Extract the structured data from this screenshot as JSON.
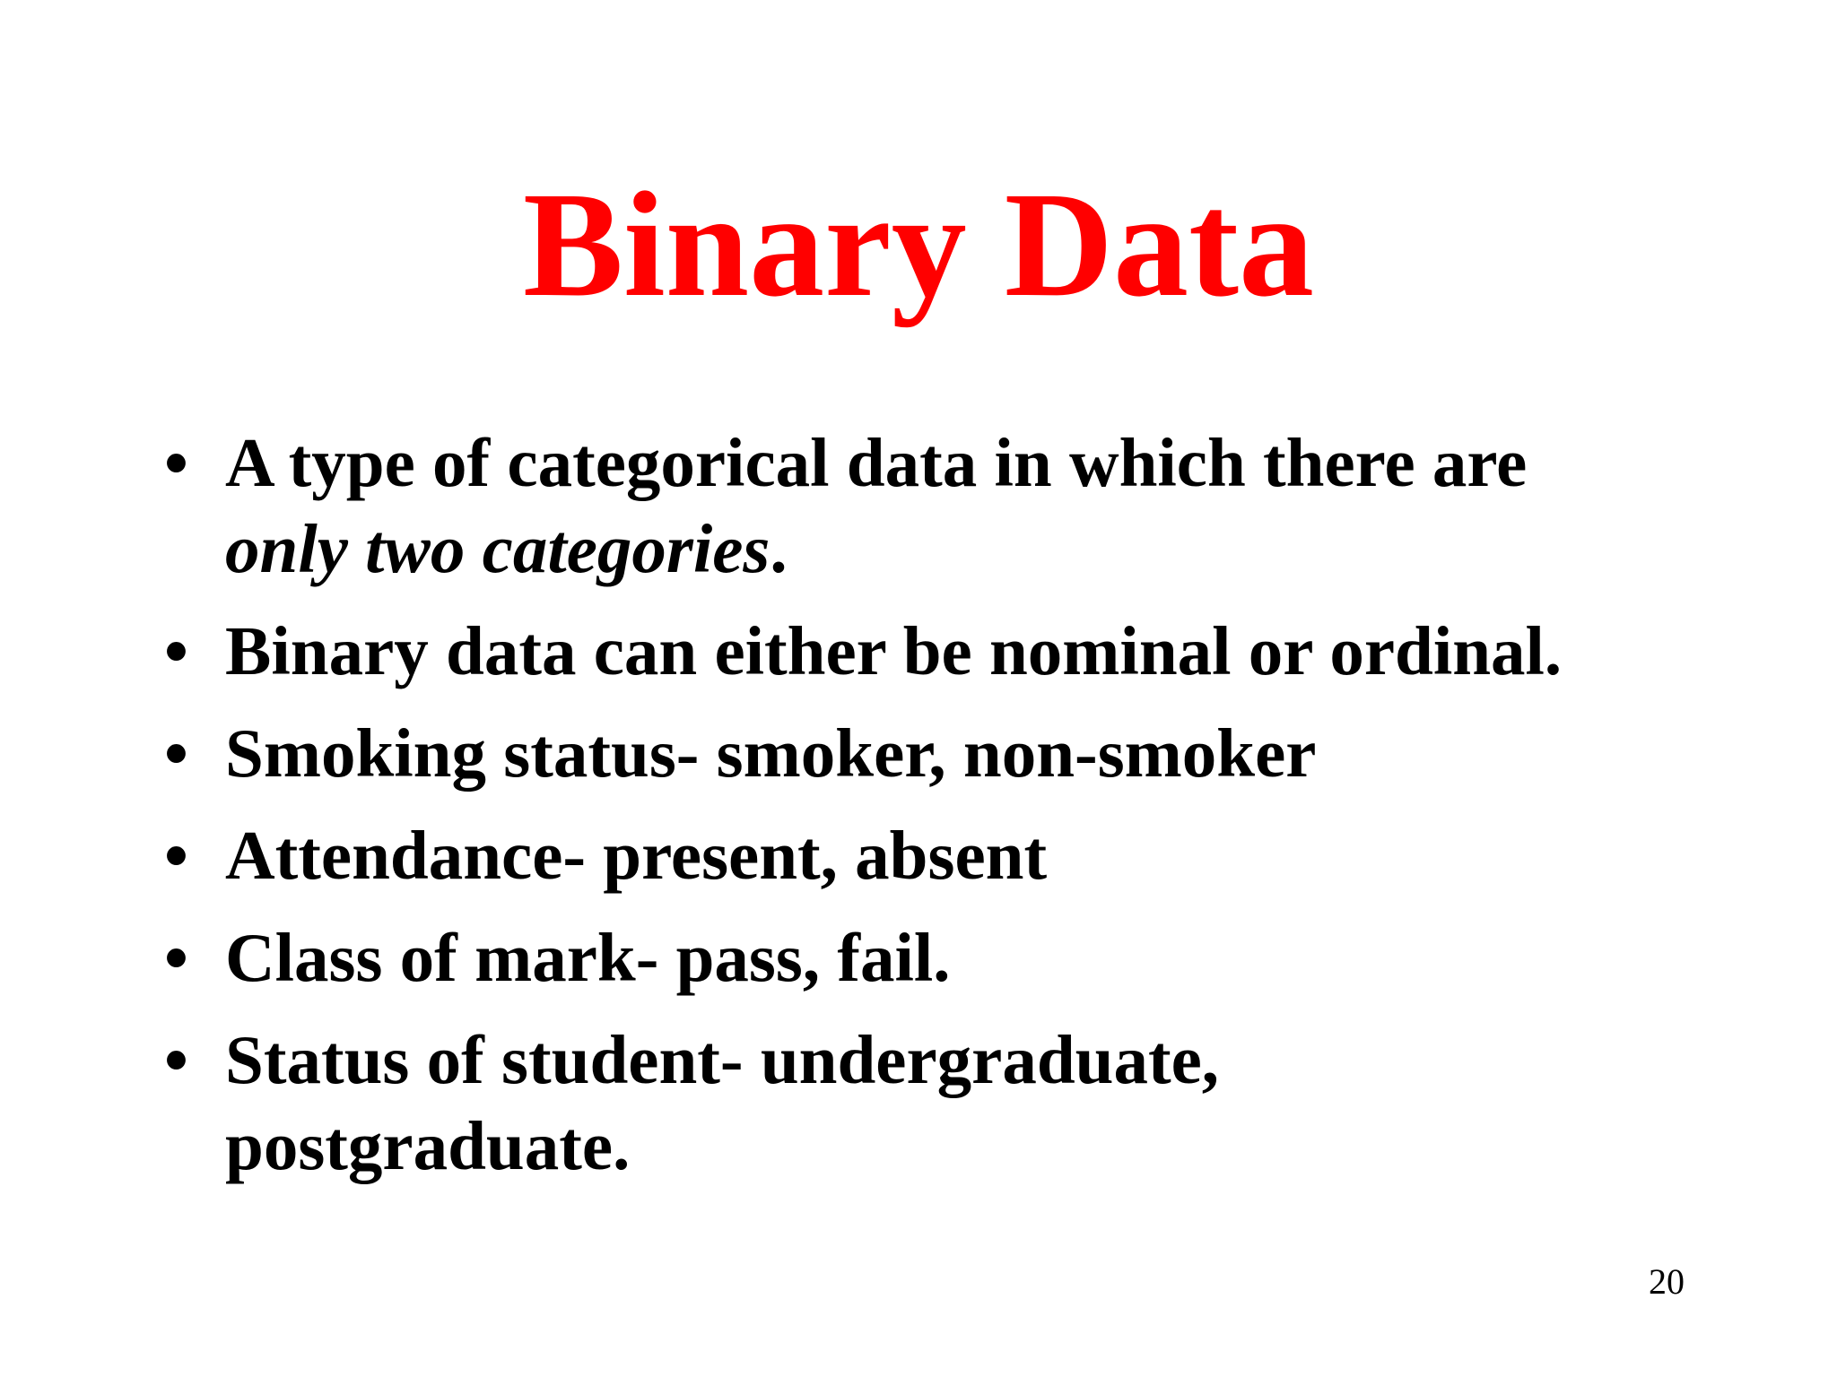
{
  "slide": {
    "title": "Binary Data",
    "title_color": "#ff0000",
    "bullet_glyph": "•",
    "bullets": [
      {
        "text": "A type of categorical data in which there are ",
        "emphasis": "only two categories",
        "after": "."
      },
      {
        "text": "Binary data can either be nominal or ordinal."
      },
      {
        "text": "Smoking status- smoker, non-smoker"
      },
      {
        "text": "Attendance- present, absent"
      },
      {
        "text": "Class of mark- pass, fail."
      },
      {
        "text": "Status of student- undergraduate, postgraduate."
      }
    ],
    "page_number": "20"
  }
}
